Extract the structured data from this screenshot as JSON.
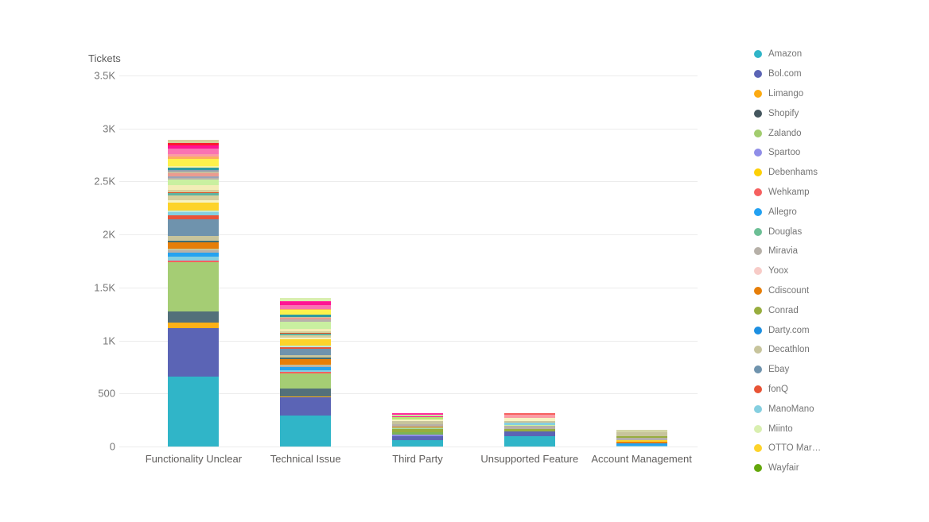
{
  "chart_data": {
    "type": "bar",
    "stacked": true,
    "title": "Tickets",
    "grid": true,
    "legend_position": "right",
    "categories": [
      "Functionality Unclear",
      "Technical Issue",
      "Third Party",
      "Unsupported Feature",
      "Account Management"
    ],
    "y_axis": {
      "min": 0,
      "max": 3500,
      "ticks": [
        {
          "label": "3.5K",
          "value": 3500
        },
        {
          "label": "3K",
          "value": 3000
        },
        {
          "label": "2.5K",
          "value": 2500
        },
        {
          "label": "2K",
          "value": 2000
        },
        {
          "label": "1.5K",
          "value": 1500
        },
        {
          "label": "1K",
          "value": 1000
        },
        {
          "label": "500",
          "value": 500
        },
        {
          "label": "0",
          "value": 0
        }
      ]
    },
    "legend": [
      {
        "label": "Amazon",
        "color": "#30b5c8"
      },
      {
        "label": "Bol.com",
        "color": "#5b64b5"
      },
      {
        "label": "Limango",
        "color": "#fcaa12"
      },
      {
        "label": "Shopify",
        "color": "#44565e"
      },
      {
        "label": "Zalando",
        "color": "#a2cc6e"
      },
      {
        "label": "Spartoo",
        "color": "#908ee8"
      },
      {
        "label": "Debenhams",
        "color": "#fdd005"
      },
      {
        "label": "Wehkamp",
        "color": "#f6605f"
      },
      {
        "label": "Allegro",
        "color": "#22a1f2"
      },
      {
        "label": "Douglas",
        "color": "#6cbf95"
      },
      {
        "label": "Miravia",
        "color": "#b6b0a8"
      },
      {
        "label": "Yoox",
        "color": "#f7cbc7"
      },
      {
        "label": "Cdiscount",
        "color": "#e67e08"
      },
      {
        "label": "Conrad",
        "color": "#97ad3e"
      },
      {
        "label": "Darty.com",
        "color": "#1d8fe1"
      },
      {
        "label": "Decathlon",
        "color": "#c7c49c"
      },
      {
        "label": "Ebay",
        "color": "#6f93ad"
      },
      {
        "label": "fonQ",
        "color": "#e85335"
      },
      {
        "label": "ManoMano",
        "color": "#85cfe0"
      },
      {
        "label": "Miinto",
        "color": "#d9efb0"
      },
      {
        "label": "OTTO Mar…",
        "color": "#fdd32a"
      },
      {
        "label": "Wayfair",
        "color": "#64a70b"
      }
    ],
    "bars": [
      {
        "category": "Functionality Unclear",
        "total": 2920,
        "segments": [
          {
            "series": "Amazon",
            "color": "#30b5c8",
            "value": 660
          },
          {
            "series": "Bol.com",
            "color": "#5b64b5",
            "value": 455
          },
          {
            "series": "Limango",
            "color": "#fcb017",
            "value": 52
          },
          {
            "series": "Shopify",
            "color": "#53707a",
            "value": 110
          },
          {
            "series": "Zalando",
            "color": "#a5cd74",
            "value": 460
          },
          {
            "series": "Wehkamp",
            "color": "#f6605f",
            "value": 20
          },
          {
            "series": "ManoMano",
            "color": "#85cfe0",
            "value": 35
          },
          {
            "series": "Allegro",
            "color": "#25a2f0",
            "value": 38
          },
          {
            "series": "Miravia",
            "color": "#b6b0a8",
            "value": 22
          },
          {
            "series": "Decathlon",
            "color": "#c7c49c",
            "value": 15
          },
          {
            "series": "Cdiscount",
            "color": "#e67e08",
            "value": 58
          },
          {
            "series": "Shopify",
            "color": "#3f6d74",
            "value": 15
          },
          {
            "series": "Decathlon",
            "color": "#c7c49c",
            "value": 50
          },
          {
            "series": "Ebay",
            "color": "#6f93ad",
            "value": 155
          },
          {
            "series": "fonQ",
            "color": "#e85438",
            "value": 35
          },
          {
            "series": "ManoMano",
            "color": "#85cfe0",
            "value": 35
          },
          {
            "series": "Douglas",
            "color": "#bfe9d8",
            "value": 15
          },
          {
            "series": "OTTO Mar…",
            "color": "#fdd32a",
            "value": 72
          },
          {
            "color": "#f6f3c3",
            "value": 20
          },
          {
            "color": "#d6cf9c",
            "value": 45
          },
          {
            "color": "#5fb3a1",
            "value": 22
          },
          {
            "color": "#d9542b",
            "value": 14
          },
          {
            "color": "#d6cf9c",
            "value": 20
          },
          {
            "color": "#f2edb6",
            "value": 45
          },
          {
            "series": "Miinto",
            "color": "#c9f0a0",
            "value": 52
          },
          {
            "color": "#b8b3ab",
            "value": 15
          },
          {
            "color": "#9aa4b8",
            "value": 15
          },
          {
            "color": "#eb9b8f",
            "value": 28
          },
          {
            "color": "#cbbd9e",
            "value": 15
          },
          {
            "color": "#8fa0b0",
            "value": 15
          },
          {
            "color": "#2e9aa0",
            "value": 22
          },
          {
            "color": "#f8f4a0",
            "value": 15
          },
          {
            "series": "Debenhams",
            "color": "#fdf14b",
            "value": 70
          },
          {
            "color": "#fdaf5f",
            "value": 22
          },
          {
            "color": "#fa9ca4",
            "value": 22
          },
          {
            "color": "#f973b2",
            "value": 50
          },
          {
            "color": "#ff1493",
            "value": 35
          },
          {
            "color": "#fb1b2f",
            "value": 20
          },
          {
            "color": "#d6cf9c",
            "value": 35
          }
        ]
      },
      {
        "category": "Technical Issue",
        "total": 1400,
        "segments": [
          {
            "series": "Amazon",
            "color": "#30b5c8",
            "value": 292
          },
          {
            "series": "Bol.com",
            "color": "#5b64b5",
            "value": 172
          },
          {
            "series": "Limango",
            "color": "#fcb017",
            "value": 8
          },
          {
            "series": "Shopify",
            "color": "#53707a",
            "value": 75
          },
          {
            "series": "Zalando",
            "color": "#a5cd74",
            "value": 142
          },
          {
            "series": "Wehkamp",
            "color": "#f6605f",
            "value": 15
          },
          {
            "series": "ManoMano",
            "color": "#85cfe0",
            "value": 15
          },
          {
            "series": "Allegro",
            "color": "#25a2f0",
            "value": 30
          },
          {
            "series": "Miravia",
            "color": "#b6b0a8",
            "value": 15
          },
          {
            "series": "Decathlon",
            "color": "#c7c49c",
            "value": 11
          },
          {
            "series": "Cdiscount",
            "color": "#e67e08",
            "value": 49
          },
          {
            "series": "Shopify",
            "color": "#3f6d74",
            "value": 15
          },
          {
            "series": "Decathlon",
            "color": "#c7c49c",
            "value": 22
          },
          {
            "series": "Ebay",
            "color": "#6f93ad",
            "value": 60
          },
          {
            "series": "fonQ",
            "color": "#e85438",
            "value": 15
          },
          {
            "series": "Douglas",
            "color": "#bfe9d8",
            "value": 15
          },
          {
            "series": "OTTO Mar…",
            "color": "#fdd32a",
            "value": 60
          },
          {
            "color": "#f6f3c3",
            "value": 15
          },
          {
            "color": "#d6cf9c",
            "value": 22
          },
          {
            "color": "#5fb3a1",
            "value": 15
          },
          {
            "color": "#d9542b",
            "value": 8
          },
          {
            "color": "#d6cf9c",
            "value": 15
          },
          {
            "color": "#f2edb6",
            "value": 22
          },
          {
            "series": "Miinto",
            "color": "#c9f0a0",
            "value": 67
          },
          {
            "color": "#b8b3ab",
            "value": 22
          },
          {
            "color": "#eb9b8f",
            "value": 15
          },
          {
            "color": "#cbbd9e",
            "value": 8
          },
          {
            "color": "#2e9aa0",
            "value": 22
          },
          {
            "series": "Debenhams",
            "color": "#fdf14b",
            "value": 45
          },
          {
            "color": "#fdaf5f",
            "value": 8
          },
          {
            "color": "#f973b2",
            "value": 37
          },
          {
            "color": "#ff1493",
            "value": 30
          },
          {
            "color": "#ff2d9d",
            "value": 8
          },
          {
            "series": "Miinto",
            "color": "#d9efb0",
            "value": 30
          }
        ]
      },
      {
        "category": "Third Party",
        "total": 315,
        "segments": [
          {
            "series": "Amazon",
            "color": "#30b5c8",
            "value": 60
          },
          {
            "series": "Bol.com",
            "color": "#5b64b5",
            "value": 37
          },
          {
            "series": "Spartoo",
            "color": "#908ee8",
            "value": 15
          },
          {
            "series": "Zalando",
            "color": "#7cb356",
            "value": 25
          },
          {
            "series": "Conrad",
            "color": "#97ad3e",
            "value": 25
          },
          {
            "series": "Douglas",
            "color": "#a8d9a0",
            "value": 15
          },
          {
            "series": "Cdiscount",
            "color": "#e67e08",
            "value": 8
          },
          {
            "series": "Miravia",
            "color": "#b6b0a8",
            "value": 25
          },
          {
            "series": "Decathlon",
            "color": "#c7c49c",
            "value": 30
          },
          {
            "color": "#f6f3c3",
            "value": 15
          },
          {
            "color": "#b5e878",
            "value": 22
          },
          {
            "color": "#ff1493",
            "value": 8
          },
          {
            "series": "Miinto",
            "color": "#c9f0a0",
            "value": 15
          },
          {
            "color": "#ff2d9d",
            "value": 15
          }
        ]
      },
      {
        "category": "Unsupported Feature",
        "total": 310,
        "segments": [
          {
            "series": "Amazon",
            "color": "#30b5c8",
            "value": 97
          },
          {
            "series": "Bol.com",
            "color": "#5b64b5",
            "value": 45
          },
          {
            "series": "Conrad",
            "color": "#97ad3e",
            "value": 22
          },
          {
            "series": "Miravia",
            "color": "#b6b0a8",
            "value": 30
          },
          {
            "series": "Miinto",
            "color": "#c9f0a0",
            "value": 8
          },
          {
            "series": "ManoMano",
            "color": "#85cfe0",
            "value": 22
          },
          {
            "series": "Decathlon",
            "color": "#c7c49c",
            "value": 15
          },
          {
            "color": "#f6f3c3",
            "value": 30
          },
          {
            "color": "#fa9ca4",
            "value": 30
          },
          {
            "series": "Wehkamp",
            "color": "#f6605f",
            "value": 15
          }
        ]
      },
      {
        "category": "Account Management",
        "total": 150,
        "segments": [
          {
            "series": "ManoMano",
            "color": "#85cfe0",
            "value": 8
          },
          {
            "series": "Allegro",
            "color": "#25a2f0",
            "value": 22
          },
          {
            "series": "Cdiscount",
            "color": "#e67e08",
            "value": 15
          },
          {
            "series": "OTTO Mar…",
            "color": "#fdd32a",
            "value": 15
          },
          {
            "series": "Miravia",
            "color": "#b6b0a8",
            "value": 22
          },
          {
            "series": "Conrad",
            "color": "#97ad3e",
            "value": 15
          },
          {
            "series": "Decathlon",
            "color": "#c7c49c",
            "value": 37
          },
          {
            "color": "#d3d6a8",
            "value": 22
          }
        ]
      }
    ]
  }
}
